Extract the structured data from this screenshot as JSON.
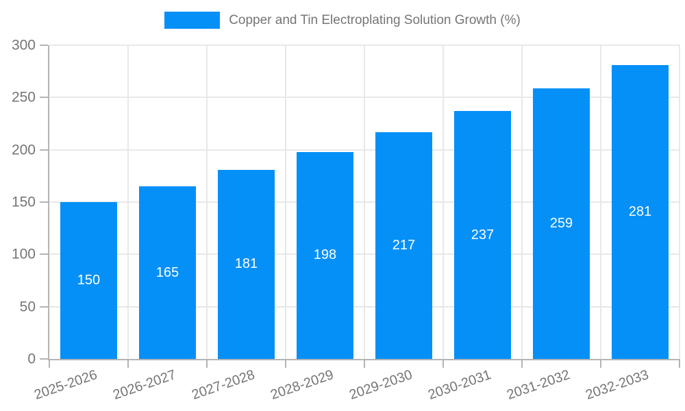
{
  "chart_data": {
    "type": "bar",
    "title": "Copper and Tin Electroplating Solution Growth (%)",
    "categories": [
      "2025-2026",
      "2026-2027",
      "2027-2028",
      "2028-2029",
      "2029-2030",
      "2030-2031",
      "2031-2032",
      "2032-2033"
    ],
    "values": [
      150,
      165,
      181,
      198,
      217,
      237,
      259,
      281
    ],
    "xlabel": "",
    "ylabel": "",
    "ylim": [
      0,
      300
    ],
    "yticks": [
      0,
      50,
      100,
      150,
      200,
      250,
      300
    ],
    "grid": true,
    "legend_position": "top-center",
    "bar_label_position": "center"
  },
  "colors": {
    "bar": "#0590F8",
    "bar_label": "#FFFFFF",
    "axis": "#B4B4B4",
    "grid": "#E8E8E8",
    "text": "#757575"
  }
}
